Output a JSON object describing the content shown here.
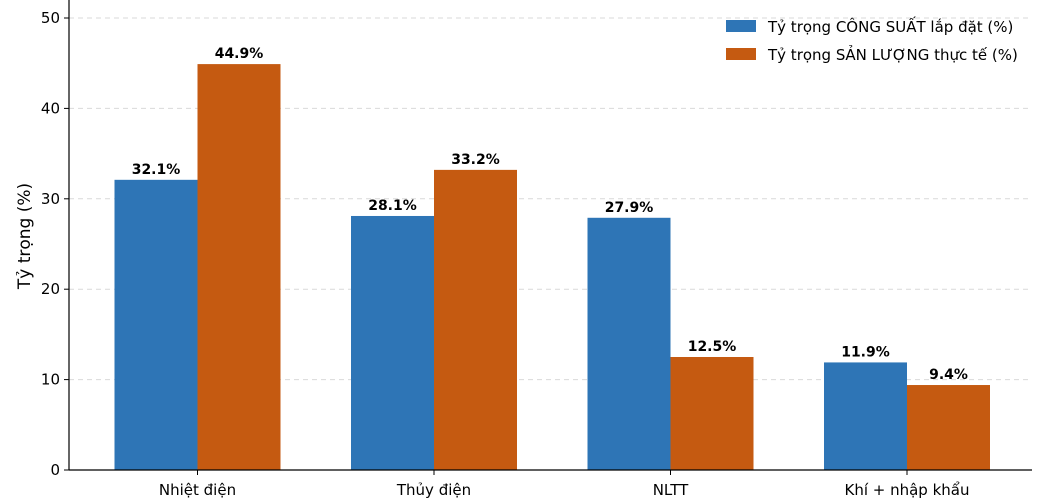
{
  "chart_data": {
    "type": "bar",
    "categories": [
      "Nhiệt điện",
      "Thủy điện",
      "NLTT",
      "Khí + nhập khẩu"
    ],
    "series": [
      {
        "name": "Tỷ trọng CÔNG SUẤT lắp đặt (%)",
        "values": [
          32.1,
          28.1,
          27.9,
          11.9
        ],
        "labels": [
          "32.1%",
          "28.1%",
          "27.9%",
          "11.9%"
        ],
        "color": "#2e75b6"
      },
      {
        "name": "Tỷ trọng SẢN LƯỢNG thực tế (%)",
        "values": [
          44.9,
          33.2,
          12.5,
          9.4
        ],
        "labels": [
          "44.9%",
          "33.2%",
          "12.5%",
          "9.4%"
        ],
        "color": "#c55a11"
      }
    ],
    "ylabel": "Tỷ trọng (%)",
    "xlabel": "",
    "ylim": [
      0,
      50
    ],
    "yticks": [
      "0",
      "10",
      "20",
      "30",
      "40",
      "50"
    ],
    "grid": "horizontal-dashed",
    "legend_position": "top-right"
  }
}
